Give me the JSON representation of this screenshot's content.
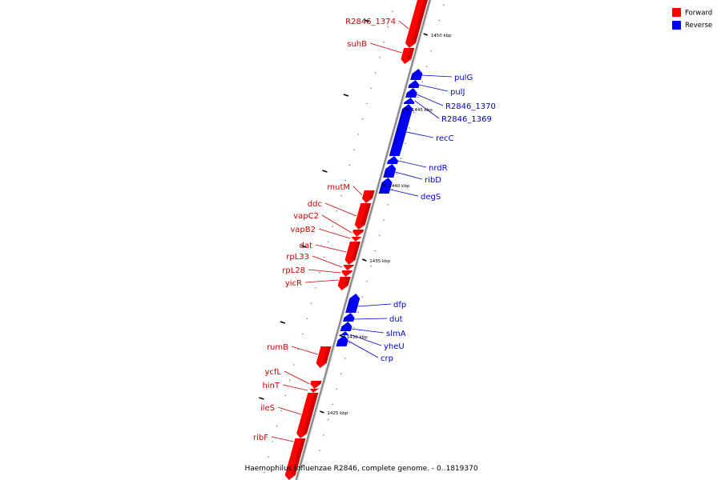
{
  "colors": {
    "forward": "#ff0000",
    "reverse": "#0000ff",
    "forward_label": "#cc0000",
    "reverse_label": "#0000cc",
    "backbone": "#8a8a8a"
  },
  "legend": {
    "forward": "Forward",
    "reverse": "Reverse"
  },
  "caption": "Haemophilus influenzae R2846, complete genome. - 0..1819370",
  "ticks": [
    {
      "label": "1450 kbp"
    },
    {
      "label": "1445 kbp"
    },
    {
      "label": "1440 kbp"
    },
    {
      "label": "1435 kbp"
    },
    {
      "label": "1430 kbp"
    },
    {
      "label": "1425 kbp"
    }
  ],
  "forward_genes": [
    {
      "name": "R2846_1374"
    },
    {
      "name": "suhB"
    },
    {
      "name": "mutM"
    },
    {
      "name": "ddc"
    },
    {
      "name": "vapC2"
    },
    {
      "name": "vapB2"
    },
    {
      "name": "dat"
    },
    {
      "name": "rpL33"
    },
    {
      "name": "rpL28"
    },
    {
      "name": "yicR"
    },
    {
      "name": "rumB"
    },
    {
      "name": "ycfL"
    },
    {
      "name": "hinT"
    },
    {
      "name": "ileS"
    },
    {
      "name": "ribF"
    }
  ],
  "reverse_genes": [
    {
      "name": "pulG"
    },
    {
      "name": "pulJ"
    },
    {
      "name": "R2846_1370"
    },
    {
      "name": "R2846_1369"
    },
    {
      "name": "recC"
    },
    {
      "name": "nrdR"
    },
    {
      "name": "ribD"
    },
    {
      "name": "degS"
    },
    {
      "name": "dfp"
    },
    {
      "name": "dut"
    },
    {
      "name": "slmA"
    },
    {
      "name": "yheU"
    },
    {
      "name": "crp"
    }
  ]
}
